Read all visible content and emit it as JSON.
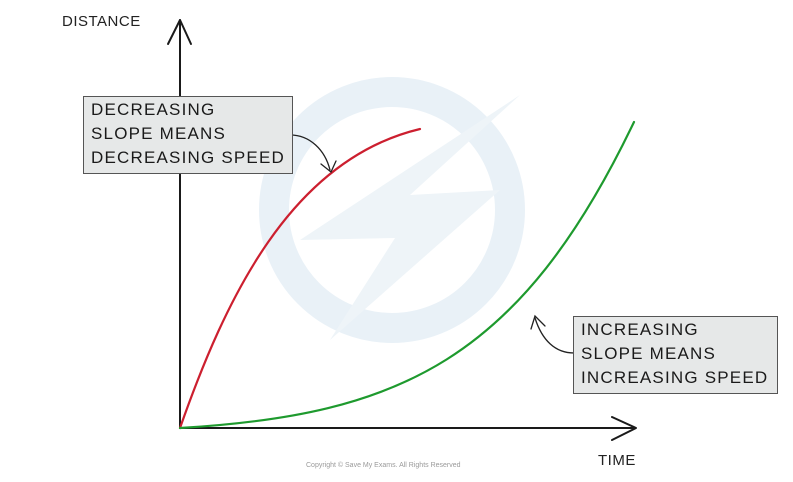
{
  "axes": {
    "y_label": "DISTANCE",
    "x_label": "TIME"
  },
  "curves": [
    {
      "shape": "concave",
      "color": "#cc1f2f"
    },
    {
      "shape": "convex",
      "color": "#1e9a2e"
    }
  ],
  "callouts": {
    "decreasing": [
      "DECREASING",
      "SLOPE  MEANS",
      "DECREASING  SPEED"
    ],
    "increasing": [
      "INCREASING",
      "SLOPE  MEANS",
      "INCREASING  SPEED"
    ]
  },
  "footer": {
    "copyright": "Copyright © Save My Exams. All Rights Reserved"
  },
  "colors": {
    "axis": "#1a1a1a",
    "callout_fill": "#e6e8e8",
    "watermark": "#e9f1f7"
  }
}
